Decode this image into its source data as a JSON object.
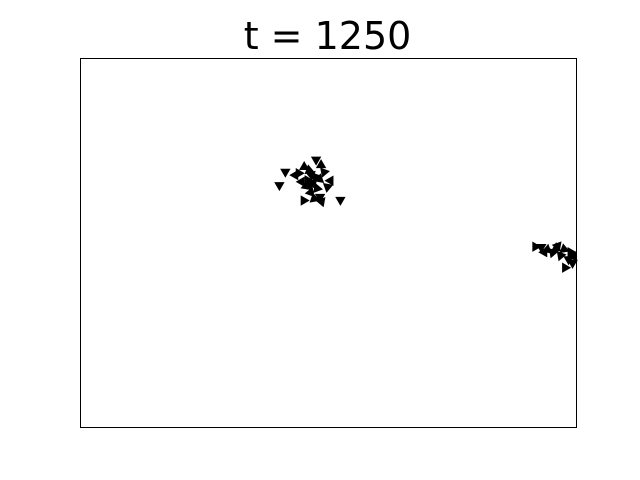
{
  "chart_data": {
    "type": "scatter",
    "title": "t = 1250",
    "xlabel": "",
    "ylabel": "",
    "xlim": [
      0,
      100
    ],
    "ylim": [
      0,
      100
    ],
    "grid": false,
    "ticks_visible": false,
    "marker": "triangle",
    "marker_color": "#000000",
    "points": [
      {
        "x": 41.3,
        "y": 69.3,
        "angle": 180
      },
      {
        "x": 40.1,
        "y": 65.7,
        "angle": 180
      },
      {
        "x": 43.3,
        "y": 68.4,
        "angle": 150
      },
      {
        "x": 44.0,
        "y": 68.9,
        "angle": 210
      },
      {
        "x": 45.1,
        "y": 70.6,
        "angle": 120
      },
      {
        "x": 48.5,
        "y": 71.1,
        "angle": 240
      },
      {
        "x": 47.5,
        "y": 72.6,
        "angle": 300
      },
      {
        "x": 46.5,
        "y": 68.5,
        "angle": 170
      },
      {
        "x": 47.4,
        "y": 67.9,
        "angle": 200
      },
      {
        "x": 45.8,
        "y": 67.0,
        "angle": 90
      },
      {
        "x": 48.2,
        "y": 67.3,
        "angle": 250
      },
      {
        "x": 46.9,
        "y": 66.1,
        "angle": 160
      },
      {
        "x": 45.5,
        "y": 65.4,
        "angle": 130
      },
      {
        "x": 47.7,
        "y": 64.8,
        "angle": 220
      },
      {
        "x": 49.8,
        "y": 65.2,
        "angle": 190
      },
      {
        "x": 50.4,
        "y": 66.9,
        "angle": 270
      },
      {
        "x": 46.4,
        "y": 63.7,
        "angle": 140
      },
      {
        "x": 48.3,
        "y": 62.5,
        "angle": 180
      },
      {
        "x": 47.1,
        "y": 62.0,
        "angle": 110
      },
      {
        "x": 45.0,
        "y": 61.5,
        "angle": 210
      },
      {
        "x": 48.6,
        "y": 61.2,
        "angle": 160
      },
      {
        "x": 52.4,
        "y": 61.7,
        "angle": 60
      },
      {
        "x": 46.1,
        "y": 69.7,
        "angle": 230
      },
      {
        "x": 49.1,
        "y": 69.2,
        "angle": 200
      },
      {
        "x": 44.6,
        "y": 66.6,
        "angle": 150
      },
      {
        "x": 46.2,
        "y": 65.8,
        "angle": 280
      },
      {
        "x": 91.7,
        "y": 49.0,
        "angle": 330
      },
      {
        "x": 92.9,
        "y": 48.9,
        "angle": 300
      },
      {
        "x": 94.1,
        "y": 48.2,
        "angle": 250
      },
      {
        "x": 95.2,
        "y": 47.4,
        "angle": 200
      },
      {
        "x": 96.2,
        "y": 49.2,
        "angle": 280
      },
      {
        "x": 97.5,
        "y": 48.3,
        "angle": 230
      },
      {
        "x": 98.8,
        "y": 47.5,
        "angle": 210
      },
      {
        "x": 98.4,
        "y": 45.6,
        "angle": 300
      },
      {
        "x": 99.4,
        "y": 46.3,
        "angle": 260
      },
      {
        "x": 96.8,
        "y": 46.6,
        "angle": 320
      },
      {
        "x": 99.2,
        "y": 44.6,
        "angle": 180
      },
      {
        "x": 97.7,
        "y": 43.3,
        "angle": 330
      },
      {
        "x": 93.5,
        "y": 47.5,
        "angle": 270
      },
      {
        "x": 95.9,
        "y": 48.6,
        "angle": 240
      }
    ]
  }
}
